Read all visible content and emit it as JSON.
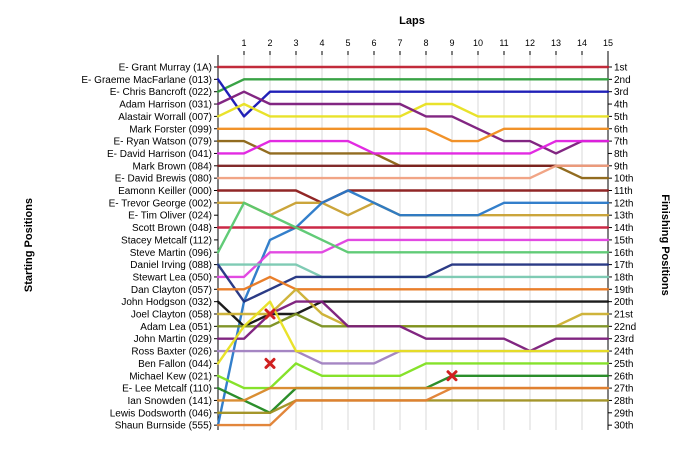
{
  "chart_data": {
    "type": "line",
    "title": "",
    "xlabel": "Laps",
    "ylabel_left": "Starting Positions",
    "ylabel_right": "Finishing Positions",
    "x_ticks": [
      "1",
      "2",
      "3",
      "4",
      "5",
      "6",
      "7",
      "8",
      "9",
      "10",
      "11",
      "12",
      "13",
      "14",
      "15"
    ],
    "lap_count": 15,
    "finishing_labels": [
      "1st",
      "2nd",
      "3rd",
      "4th",
      "5th",
      "6th",
      "7th",
      "8th",
      "9th",
      "10th",
      "11th",
      "12th",
      "13th",
      "14th",
      "15th",
      "16th",
      "17th",
      "18th",
      "19th",
      "20th",
      "21st",
      "22nd",
      "23rd",
      "24th",
      "25th",
      "26th",
      "27th",
      "28th",
      "29th",
      "30th"
    ],
    "drivers": [
      {
        "name": "E- Grant Murray (1A)",
        "color": "#bf2030",
        "positions": [
          1,
          1,
          1,
          1,
          1,
          1,
          1,
          1,
          1,
          1,
          1,
          1,
          1,
          1,
          1,
          1
        ]
      },
      {
        "name": "E- Graeme MacFarlane (013)",
        "color": "#2e9e3c",
        "positions": [
          3,
          2,
          2,
          2,
          2,
          2,
          2,
          2,
          2,
          2,
          2,
          2,
          2,
          2,
          2,
          2
        ]
      },
      {
        "name": "E- Chris Bancroft (022)",
        "color": "#1414b4",
        "positions": [
          2,
          5,
          3,
          3,
          3,
          3,
          3,
          3,
          3,
          3,
          3,
          3,
          3,
          3,
          3,
          3
        ]
      },
      {
        "name": "Adam Harrison (031)",
        "color": "#e8e020",
        "positions": [
          5,
          4,
          5,
          5,
          5,
          5,
          5,
          5,
          4,
          4,
          5,
          5,
          5,
          5,
          5,
          5
        ]
      },
      {
        "name": "Alastair Worrall (007)",
        "color": "#7b1a7b",
        "positions": [
          4,
          3,
          4,
          4,
          4,
          4,
          4,
          4,
          5,
          5,
          6,
          7,
          7,
          8,
          7,
          7
        ]
      },
      {
        "name": "Mark Forster (099)",
        "color": "#f08c1e",
        "positions": [
          6,
          6,
          6,
          6,
          6,
          6,
          6,
          6,
          6,
          7,
          7,
          6,
          6,
          6,
          6,
          6
        ]
      },
      {
        "name": "E- Ryan Watson (079)",
        "color": "#8c6414",
        "positions": [
          7,
          7,
          8,
          8,
          8,
          8,
          8,
          9,
          9,
          9,
          9,
          9,
          9,
          9,
          10,
          10
        ]
      },
      {
        "name": "E- David Harrison (041)",
        "color": "#e020e0",
        "positions": [
          8,
          8,
          7,
          7,
          7,
          7,
          8,
          8,
          8,
          8,
          8,
          8,
          8,
          7,
          7,
          7
        ]
      },
      {
        "name": "Mark Brown (084)",
        "color": "#7a2020",
        "positions": [
          9,
          9,
          9,
          9,
          9,
          9,
          9,
          9,
          9,
          9,
          9,
          9,
          9,
          9,
          9,
          9
        ]
      },
      {
        "name": "E- David Brewis (080)",
        "color": "#f0a080",
        "positions": [
          10,
          10,
          10,
          10,
          10,
          10,
          10,
          10,
          10,
          10,
          10,
          10,
          10,
          9,
          9,
          9
        ]
      },
      {
        "name": "Eamonn Keiller (000)",
        "color": "#8b1a1a",
        "positions": [
          11,
          11,
          11,
          11,
          12,
          11,
          11,
          11,
          11,
          11,
          11,
          11,
          11,
          11,
          11,
          11
        ]
      },
      {
        "name": "E- Trevor George (002)",
        "color": "#c8a030",
        "positions": [
          12,
          12,
          13,
          12,
          12,
          13,
          12,
          13,
          13,
          13,
          13,
          13,
          13,
          13,
          13,
          13
        ]
      },
      {
        "name": "E- Tim Oliver (024)",
        "color": "#2878c8",
        "positions": [
          30,
          20,
          15,
          14,
          12,
          11,
          12,
          13,
          13,
          13,
          13,
          12,
          12,
          12,
          12,
          12
        ]
      },
      {
        "name": "Scott Brown (048)",
        "color": "#c81e3c",
        "positions": [
          14,
          14,
          14,
          14,
          14,
          14,
          14,
          14,
          14,
          14,
          14,
          14,
          14,
          14,
          14,
          14
        ]
      },
      {
        "name": "Stacey Metcalf (112)",
        "color": "#e040e0",
        "positions": [
          18,
          18,
          16,
          16,
          16,
          15,
          15,
          15,
          15,
          15,
          15,
          15,
          15,
          15,
          15,
          15
        ]
      },
      {
        "name": "Steve Martin (096)",
        "color": "#58c870",
        "positions": [
          16,
          12,
          13,
          14,
          15,
          16,
          16,
          16,
          16,
          16,
          16,
          16,
          16,
          16,
          16,
          16
        ]
      },
      {
        "name": "Daniel Irving (088)",
        "color": "#78c8b0",
        "positions": [
          17,
          17,
          17,
          17,
          18,
          18,
          18,
          18,
          18,
          18,
          18,
          18,
          18,
          18,
          18,
          18
        ]
      },
      {
        "name": "Stewart Lea (050)",
        "color": "#203080",
        "positions": [
          17,
          20,
          19,
          18,
          18,
          18,
          18,
          18,
          18,
          17,
          17,
          17,
          17,
          17,
          17,
          17
        ]
      },
      {
        "name": "Dan Clayton (057)",
        "color": "#e87820",
        "positions": [
          19,
          19,
          18,
          19,
          19,
          19,
          19,
          19,
          19,
          19,
          19,
          19,
          19,
          19,
          19,
          19
        ]
      },
      {
        "name": "John Hodgson (032)",
        "color": "#101010",
        "positions": [
          20,
          22,
          21,
          21,
          20,
          20,
          20,
          20,
          20,
          20,
          20,
          20,
          20,
          20,
          20,
          20
        ]
      },
      {
        "name": "Joel Clayton (058)",
        "color": "#ccb030",
        "positions": [
          21,
          21,
          21,
          19,
          21,
          22,
          22,
          22,
          22,
          22,
          22,
          22,
          22,
          22,
          21,
          21
        ]
      },
      {
        "name": "Adam Lea (051)",
        "color": "#7a8f1e",
        "positions": [
          22,
          22,
          22,
          21,
          22,
          22,
          22,
          22,
          22,
          22,
          22,
          22,
          22,
          22,
          22,
          22
        ]
      },
      {
        "name": "John Martin (029)",
        "color": "#7a1a7a",
        "positions": [
          23,
          23,
          21,
          20,
          20,
          22,
          22,
          22,
          23,
          23,
          23,
          23,
          24,
          23,
          23,
          23
        ]
      },
      {
        "name": "Ross Baxter (026)",
        "color": "#a080c0",
        "positions": [
          24,
          24,
          24,
          24,
          25,
          25,
          25,
          24,
          24,
          24,
          24,
          24,
          24,
          24,
          24,
          24
        ]
      },
      {
        "name": "Ben Fallon (044)",
        "color": "#e8e020",
        "positions": [
          25,
          22,
          20,
          24,
          24,
          24,
          24,
          24,
          24,
          24,
          24,
          24,
          24,
          24,
          24,
          24
        ]
      },
      {
        "name": "Michael Kew (021)",
        "color": "#80e020",
        "positions": [
          26,
          27,
          27,
          25,
          26,
          26,
          26,
          26,
          25,
          25,
          25,
          25,
          25,
          25,
          25,
          25
        ]
      },
      {
        "name": "E- Lee Metcalf (110)",
        "color": "#208820",
        "positions": [
          27,
          28,
          29,
          27,
          27,
          27,
          27,
          27,
          27,
          26,
          26,
          26,
          26,
          26,
          26,
          26
        ]
      },
      {
        "name": "Ian Snowden (141)",
        "color": "#d88828",
        "positions": [
          28,
          28,
          27,
          27,
          27,
          27,
          27,
          27,
          27,
          27,
          27,
          27,
          27,
          27,
          27,
          27
        ]
      },
      {
        "name": "Lewis Dodsworth (046)",
        "color": "#a09020",
        "positions": [
          29,
          29,
          29,
          28,
          28,
          28,
          28,
          28,
          28,
          28,
          28,
          28,
          28,
          28,
          28,
          28
        ]
      },
      {
        "name": "Shaun Burnside (555)",
        "color": "#e08030",
        "positions": [
          30,
          30,
          30,
          28,
          28,
          28,
          28,
          28,
          28,
          27,
          27,
          27,
          27,
          27,
          27,
          27
        ]
      }
    ],
    "retirements": [
      {
        "driver": "Joel Clayton (058)",
        "lap": 2,
        "position": 21
      },
      {
        "driver": "Ben Fallon (044)",
        "lap": 2,
        "position": 25
      },
      {
        "driver": "Michael Kew (021)",
        "lap": 9,
        "position": 26
      }
    ],
    "retirement_marker_color": "#d02020",
    "grid": true,
    "plot_background": "#ffffff",
    "grid_color": "#d9d9d9"
  }
}
